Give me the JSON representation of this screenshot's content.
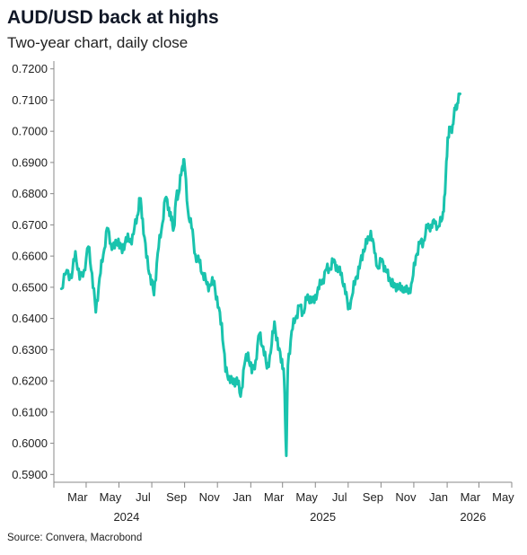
{
  "title": "AUD/USD back at highs",
  "subtitle": "Two-year chart, daily close",
  "source": "Source: Convera, Macrobond",
  "colors": {
    "line": "#19c3ad",
    "axis": "#888888",
    "grid": "#bfbfbf"
  },
  "chart_data": {
    "type": "line",
    "series": [
      {
        "x": [
          "2024-02-15",
          "2024-02-25",
          "2024-03-05",
          "2024-03-12",
          "2024-03-20",
          "2024-03-28",
          "2024-04-05",
          "2024-04-12",
          "2024-04-19",
          "2024-04-26",
          "2024-05-03",
          "2024-05-10",
          "2024-05-17",
          "2024-05-24",
          "2024-05-31",
          "2024-06-07",
          "2024-06-14",
          "2024-06-21",
          "2024-06-28",
          "2024-07-05",
          "2024-07-10",
          "2024-07-15",
          "2024-07-22",
          "2024-07-29",
          "2024-08-05",
          "2024-08-12",
          "2024-08-19",
          "2024-08-26",
          "2024-09-02",
          "2024-09-06",
          "2024-09-11",
          "2024-09-16",
          "2024-09-20",
          "2024-09-26",
          "2024-09-30",
          "2024-10-07",
          "2024-10-14",
          "2024-10-21",
          "2024-10-28",
          "2024-11-04",
          "2024-11-11",
          "2024-11-18",
          "2024-11-25",
          "2024-12-02",
          "2024-12-09",
          "2024-12-16",
          "2024-12-23",
          "2024-12-30",
          "2025-01-06",
          "2025-01-13",
          "2025-01-20",
          "2025-01-27",
          "2025-02-03",
          "2025-02-10",
          "2025-02-17",
          "2025-02-24",
          "2025-03-03",
          "2025-03-10",
          "2025-03-17",
          "2025-03-24",
          "2025-03-31",
          "2025-04-04",
          "2025-04-08",
          "2025-04-11",
          "2025-04-18",
          "2025-04-25",
          "2025-05-02",
          "2025-05-09",
          "2025-05-16",
          "2025-05-23",
          "2025-05-30",
          "2025-06-06",
          "2025-06-13",
          "2025-06-20",
          "2025-06-27",
          "2025-07-04",
          "2025-07-11",
          "2025-07-18",
          "2025-07-25",
          "2025-08-01",
          "2025-08-08",
          "2025-08-15",
          "2025-08-22",
          "2025-08-29",
          "2025-09-05",
          "2025-09-12",
          "2025-09-19",
          "2025-09-26",
          "2025-10-03",
          "2025-10-10",
          "2025-10-17",
          "2025-10-24",
          "2025-10-31",
          "2025-11-07",
          "2025-11-14",
          "2025-11-21",
          "2025-11-28",
          "2025-12-05",
          "2025-12-12",
          "2025-12-19",
          "2025-12-26",
          "2026-01-02",
          "2026-01-09",
          "2026-01-16",
          "2026-01-23",
          "2026-01-28",
          "2026-02-02",
          "2026-02-06",
          "2026-02-11",
          "2026-02-16",
          "2026-02-20",
          "2026-02-25"
        ],
        "values": [
          0.6495,
          0.6555,
          0.653,
          0.6615,
          0.6525,
          0.6555,
          0.663,
          0.6545,
          0.642,
          0.653,
          0.6605,
          0.669,
          0.664,
          0.6625,
          0.6655,
          0.661,
          0.666,
          0.6645,
          0.667,
          0.673,
          0.6785,
          0.672,
          0.6595,
          0.654,
          0.6475,
          0.661,
          0.6685,
          0.6785,
          0.6755,
          0.6715,
          0.669,
          0.6795,
          0.68,
          0.688,
          0.691,
          0.675,
          0.669,
          0.6605,
          0.658,
          0.6545,
          0.651,
          0.6505,
          0.652,
          0.6435,
          0.6385,
          0.623,
          0.6215,
          0.619,
          0.621,
          0.615,
          0.625,
          0.629,
          0.6225,
          0.6265,
          0.635,
          0.631,
          0.624,
          0.629,
          0.639,
          0.63,
          0.627,
          0.6205,
          0.596,
          0.625,
          0.636,
          0.64,
          0.644,
          0.642,
          0.646,
          0.647,
          0.645,
          0.65,
          0.651,
          0.6555,
          0.656,
          0.658,
          0.657,
          0.654,
          0.651,
          0.643,
          0.647,
          0.653,
          0.656,
          0.662,
          0.664,
          0.668,
          0.661,
          0.656,
          0.659,
          0.655,
          0.653,
          0.65,
          0.651,
          0.649,
          0.65,
          0.648,
          0.652,
          0.66,
          0.664,
          0.665,
          0.669,
          0.67,
          0.6705,
          0.6695,
          0.672,
          0.68,
          0.698,
          0.7,
          0.702,
          0.707,
          0.709,
          0.712
        ]
      }
    ],
    "y_ticks": [
      "0.5900",
      "0.6000",
      "0.6100",
      "0.6200",
      "0.6300",
      "0.6400",
      "0.6500",
      "0.6600",
      "0.6700",
      "0.6800",
      "0.6900",
      "0.7000",
      "0.7100",
      "0.7200"
    ],
    "x_month_ticks": [
      "Mar",
      "May",
      "Jul",
      "Sep",
      "Nov",
      "Jan",
      "Mar",
      "May",
      "Jul",
      "Sep",
      "Nov",
      "Jan",
      "Mar",
      "May"
    ],
    "x_year_labels": [
      "2024",
      "2025",
      "2026"
    ],
    "ylim": [
      0.5875,
      0.7225
    ],
    "grid": false
  }
}
